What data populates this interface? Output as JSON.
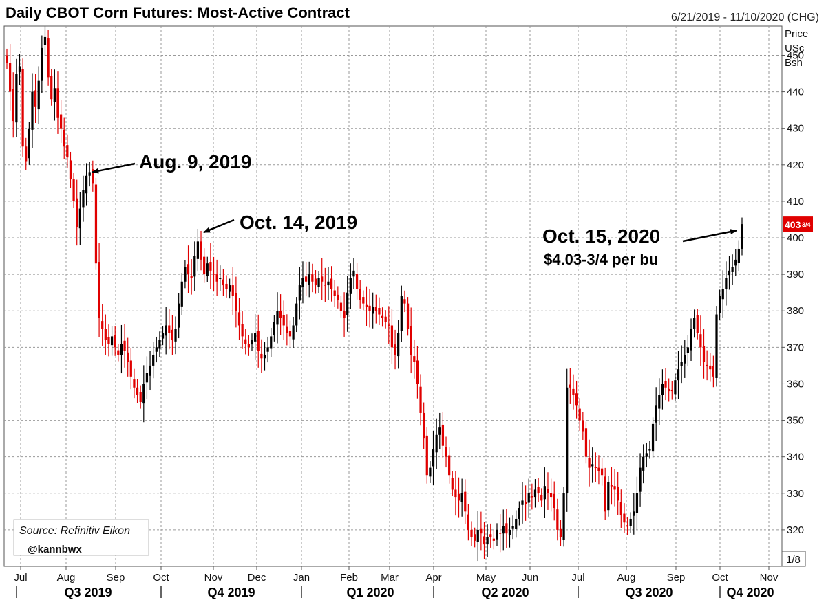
{
  "chart_data": {
    "type": "candlestick",
    "title": "Daily CBOT Corn Futures: Most-Active Contract",
    "date_range": "6/21/2019 - 11/10/2020 (CHG)",
    "y_axis": {
      "label_lines": [
        "Price",
        "USc",
        "Bsh"
      ],
      "ylim": [
        310,
        458
      ],
      "ticks": [
        320,
        330,
        340,
        350,
        360,
        370,
        380,
        390,
        400,
        410,
        420,
        430,
        440,
        450
      ],
      "scale_note": "1/8"
    },
    "x_axis": {
      "month_labels": [
        "Jul",
        "Aug",
        "Sep",
        "Oct",
        "Nov",
        "Dec",
        "Jan",
        "Feb",
        "Mar",
        "Apr",
        "May",
        "Jun",
        "Jul",
        "Aug",
        "Sep",
        "Oct",
        "Nov"
      ],
      "quarter_labels": [
        "Q3 2019",
        "Q4 2019",
        "Q1 2020",
        "Q2 2020",
        "Q3 2020",
        "Q4 2020"
      ]
    },
    "last_price": {
      "whole": "403",
      "fraction": "3/4",
      "value": 403.75
    },
    "up_color": "#000000",
    "down_color": "#e00000",
    "series_close": [
      [
        0,
        448
      ],
      [
        1,
        440
      ],
      [
        2,
        432
      ],
      [
        3,
        445
      ],
      [
        4,
        447
      ],
      [
        5,
        425
      ],
      [
        6,
        421
      ],
      [
        7,
        430
      ],
      [
        8,
        440
      ],
      [
        9,
        436
      ],
      [
        10,
        443
      ],
      [
        11,
        452
      ],
      [
        12,
        455
      ],
      [
        13,
        444
      ],
      [
        14,
        438
      ],
      [
        15,
        441
      ],
      [
        16,
        433
      ],
      [
        17,
        430
      ],
      [
        18,
        425
      ],
      [
        19,
        422
      ],
      [
        20,
        416
      ],
      [
        21,
        410
      ],
      [
        22,
        403
      ],
      [
        23,
        408
      ],
      [
        24,
        413
      ],
      [
        25,
        417
      ],
      [
        26,
        418
      ],
      [
        27,
        415
      ],
      [
        28,
        393
      ],
      [
        29,
        378
      ],
      [
        30,
        375
      ],
      [
        31,
        372
      ],
      [
        32,
        371
      ],
      [
        33,
        373
      ],
      [
        34,
        370
      ],
      [
        35,
        368
      ],
      [
        36,
        371
      ],
      [
        37,
        369
      ],
      [
        38,
        366
      ],
      [
        39,
        362
      ],
      [
        40,
        359
      ],
      [
        41,
        357
      ],
      [
        42,
        355
      ],
      [
        43,
        360
      ],
      [
        44,
        363
      ],
      [
        45,
        365
      ],
      [
        46,
        368
      ],
      [
        47,
        370
      ],
      [
        48,
        372
      ],
      [
        49,
        374
      ],
      [
        50,
        376
      ],
      [
        51,
        374
      ],
      [
        52,
        372
      ],
      [
        53,
        375
      ],
      [
        54,
        382
      ],
      [
        55,
        388
      ],
      [
        56,
        392
      ],
      [
        57,
        390
      ],
      [
        58,
        389
      ],
      [
        59,
        395
      ],
      [
        60,
        399
      ],
      [
        61,
        394
      ],
      [
        62,
        390
      ],
      [
        63,
        393
      ],
      [
        64,
        391
      ],
      [
        65,
        390
      ],
      [
        66,
        388
      ],
      [
        67,
        389
      ],
      [
        68,
        387
      ],
      [
        69,
        386
      ],
      [
        70,
        387
      ],
      [
        71,
        384
      ],
      [
        72,
        380
      ],
      [
        73,
        376
      ],
      [
        74,
        373
      ],
      [
        75,
        371
      ],
      [
        76,
        370
      ],
      [
        77,
        372
      ],
      [
        78,
        374
      ],
      [
        79,
        369
      ],
      [
        80,
        367
      ],
      [
        81,
        368
      ],
      [
        82,
        370
      ],
      [
        83,
        373
      ],
      [
        84,
        377
      ],
      [
        85,
        380
      ],
      [
        86,
        378
      ],
      [
        87,
        376
      ],
      [
        88,
        374
      ],
      [
        89,
        373
      ],
      [
        90,
        376
      ],
      [
        91,
        382
      ],
      [
        92,
        387
      ],
      [
        93,
        389
      ],
      [
        94,
        388
      ],
      [
        95,
        390
      ],
      [
        96,
        388
      ],
      [
        97,
        387
      ],
      [
        98,
        389
      ],
      [
        99,
        388
      ],
      [
        100,
        387
      ],
      [
        101,
        388
      ],
      [
        102,
        386
      ],
      [
        103,
        384
      ],
      [
        104,
        383
      ],
      [
        105,
        380
      ],
      [
        106,
        378
      ],
      [
        107,
        385
      ],
      [
        108,
        389
      ],
      [
        109,
        391
      ],
      [
        110,
        386
      ],
      [
        111,
        383
      ],
      [
        112,
        382
      ],
      [
        113,
        381
      ],
      [
        114,
        380
      ],
      [
        115,
        381
      ],
      [
        116,
        380
      ],
      [
        117,
        379
      ],
      [
        118,
        378
      ],
      [
        119,
        377
      ],
      [
        120,
        376
      ],
      [
        121,
        370
      ],
      [
        122,
        368
      ],
      [
        123,
        374
      ],
      [
        124,
        384
      ],
      [
        125,
        382
      ],
      [
        126,
        375
      ],
      [
        127,
        368
      ],
      [
        128,
        366
      ],
      [
        129,
        360
      ],
      [
        130,
        352
      ],
      [
        131,
        345
      ],
      [
        132,
        335
      ],
      [
        133,
        337
      ],
      [
        134,
        342
      ],
      [
        135,
        346
      ],
      [
        136,
        348
      ],
      [
        137,
        343
      ],
      [
        138,
        340
      ],
      [
        139,
        335
      ],
      [
        140,
        331
      ],
      [
        141,
        329
      ],
      [
        142,
        328
      ],
      [
        143,
        330
      ],
      [
        144,
        325
      ],
      [
        145,
        320
      ],
      [
        146,
        318
      ],
      [
        147,
        317
      ],
      [
        148,
        320
      ],
      [
        149,
        319
      ],
      [
        150,
        316
      ],
      [
        151,
        318
      ],
      [
        152,
        318
      ],
      [
        153,
        317
      ],
      [
        154,
        320
      ],
      [
        155,
        319
      ],
      [
        156,
        321
      ],
      [
        157,
        319
      ],
      [
        158,
        320
      ],
      [
        159,
        321
      ],
      [
        160,
        323
      ],
      [
        161,
        326
      ],
      [
        162,
        328
      ],
      [
        163,
        327
      ],
      [
        164,
        330
      ],
      [
        165,
        329
      ],
      [
        166,
        331
      ],
      [
        167,
        330
      ],
      [
        168,
        328
      ],
      [
        169,
        332
      ],
      [
        170,
        330
      ],
      [
        171,
        329
      ],
      [
        172,
        326
      ],
      [
        173,
        320
      ],
      [
        174,
        318
      ],
      [
        175,
        330
      ],
      [
        176,
        359
      ],
      [
        177,
        359
      ],
      [
        178,
        357
      ],
      [
        179,
        354
      ],
      [
        180,
        350
      ],
      [
        181,
        347
      ],
      [
        182,
        340
      ],
      [
        183,
        337
      ],
      [
        184,
        338
      ],
      [
        185,
        337
      ],
      [
        186,
        336
      ],
      [
        187,
        335
      ],
      [
        188,
        325
      ],
      [
        189,
        333
      ],
      [
        190,
        332
      ],
      [
        191,
        331
      ],
      [
        192,
        328
      ],
      [
        193,
        324
      ],
      [
        194,
        322
      ],
      [
        195,
        321
      ],
      [
        196,
        323
      ],
      [
        197,
        325
      ],
      [
        198,
        330
      ],
      [
        199,
        337
      ],
      [
        200,
        340
      ],
      [
        201,
        341
      ],
      [
        202,
        342
      ],
      [
        203,
        349
      ],
      [
        204,
        354
      ],
      [
        205,
        357
      ],
      [
        206,
        360
      ],
      [
        207,
        359
      ],
      [
        208,
        358
      ],
      [
        209,
        358
      ],
      [
        210,
        361
      ],
      [
        211,
        364
      ],
      [
        212,
        366
      ],
      [
        213,
        368
      ],
      [
        214,
        370
      ],
      [
        215,
        375
      ],
      [
        216,
        378
      ],
      [
        217,
        374
      ],
      [
        218,
        370
      ],
      [
        219,
        366
      ],
      [
        220,
        365
      ],
      [
        221,
        364
      ],
      [
        222,
        362
      ],
      [
        223,
        379
      ],
      [
        224,
        384
      ],
      [
        225,
        386
      ],
      [
        226,
        389
      ],
      [
        227,
        391
      ],
      [
        228,
        392
      ],
      [
        229,
        394
      ],
      [
        230,
        397
      ],
      [
        231,
        403.75
      ]
    ],
    "annotations": [
      {
        "id": "aug",
        "text": "Aug. 9, 2019",
        "date_index": 26,
        "price": 418
      },
      {
        "id": "oct19",
        "text": "Oct. 14, 2019",
        "date_index": 61,
        "price": 401
      },
      {
        "id": "oct20",
        "text": "Oct. 15, 2020",
        "subtext": "$4.03-3/4 per bu",
        "date_index": 231,
        "price": 402
      }
    ],
    "source_text": "Source: Refinitiv Eikon",
    "handle_text": "@kannbwx"
  }
}
